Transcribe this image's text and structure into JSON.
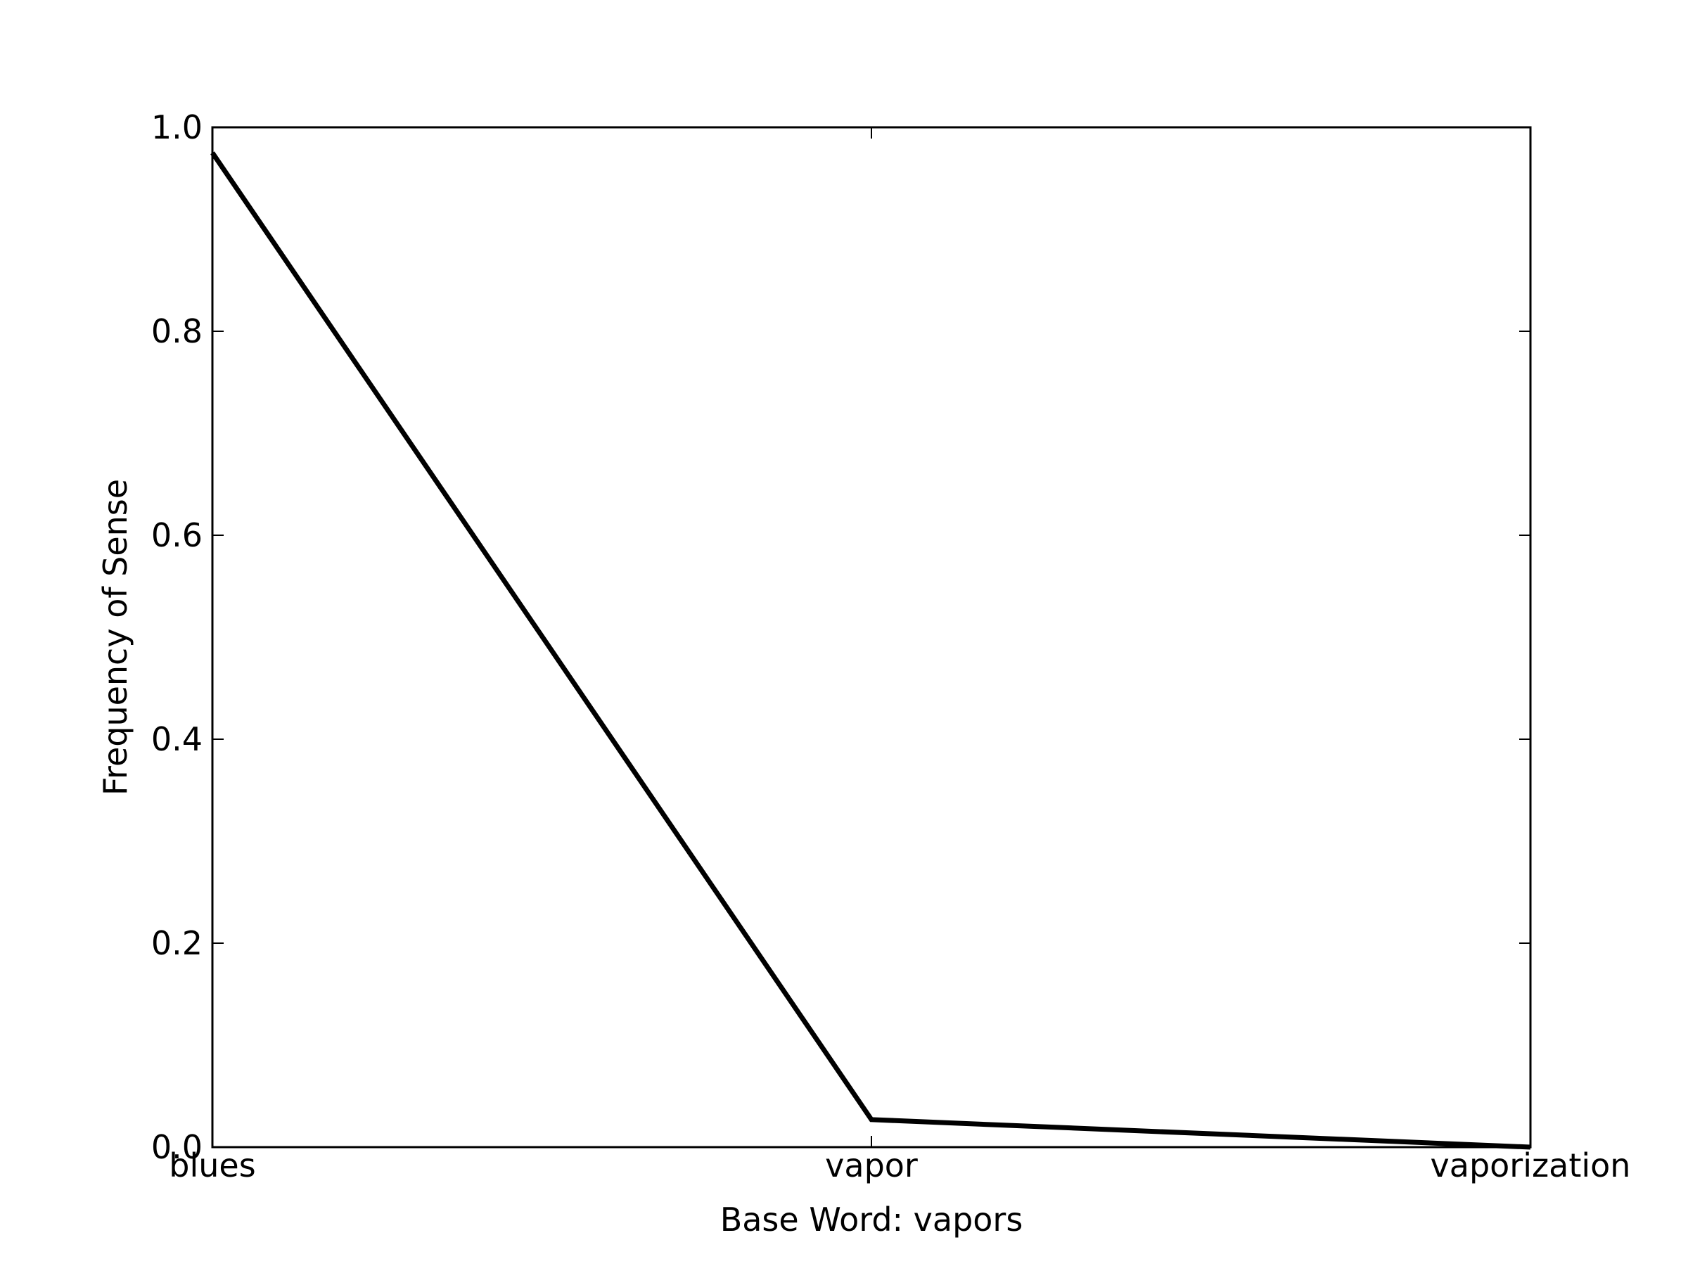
{
  "chart_data": {
    "type": "line",
    "title": "",
    "xlabel": "Base Word: vapors",
    "ylabel": "Frequency of Sense",
    "categories": [
      "blues",
      "vapor",
      "vaporization"
    ],
    "series": [
      {
        "values": [
          0.975,
          0.027,
          0.0
        ]
      }
    ],
    "ylim": [
      0.0,
      1.0
    ],
    "yticks": [
      0.0,
      0.2,
      0.4,
      0.6,
      0.8,
      1.0
    ],
    "ytick_labels": [
      "0.0",
      "0.2",
      "0.4",
      "0.6",
      "0.8",
      "1.0"
    ],
    "grid": false,
    "legend": "none",
    "line_color": "#000000"
  }
}
